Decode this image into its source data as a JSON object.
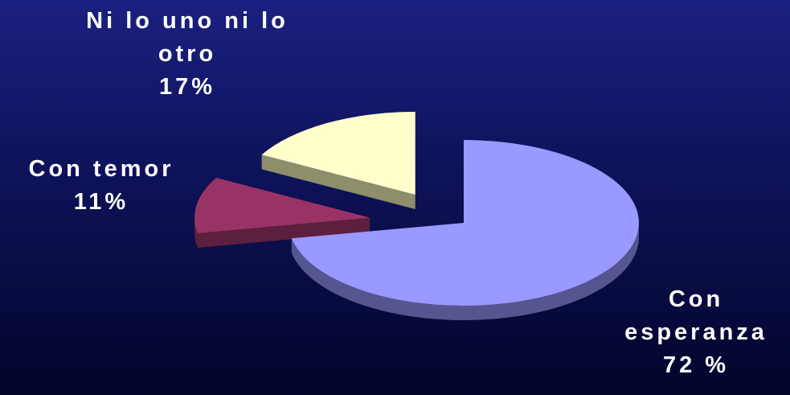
{
  "chart_data": {
    "type": "pie",
    "title": "",
    "three_d": true,
    "exploded": true,
    "background": "#0e1258",
    "slices": [
      {
        "label_lines": [
          "Con",
          "esperanza"
        ],
        "percent_label": "72 %",
        "value": 72,
        "color": "#9999ff",
        "side_color": "#55558f"
      },
      {
        "label_lines": [
          "Con temor"
        ],
        "percent_label": "11%",
        "value": 11,
        "color": "#993366",
        "side_color": "#5c1f3d"
      },
      {
        "label_lines": [
          "Ni lo uno ni lo",
          "otro"
        ],
        "percent_label": "17%",
        "value": 17,
        "color": "#ffffcc",
        "side_color": "#8e8e6a"
      }
    ]
  }
}
